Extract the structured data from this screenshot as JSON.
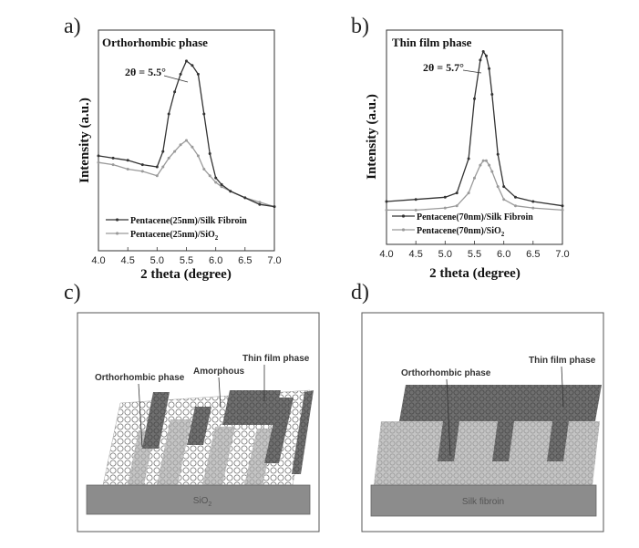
{
  "panels": {
    "a": "a)",
    "b": "b)",
    "c": "c)",
    "d": "d)"
  },
  "chart_data": [
    {
      "type": "line",
      "panel": "a",
      "title": "Orthorhombic phase",
      "annotation": "2θ = 5.5°",
      "xlabel": "2 theta (degree)",
      "ylabel": "Intensity (a.u.)",
      "xlim": [
        4.0,
        7.0
      ],
      "xticks": [
        "4.0",
        "4.5",
        "5.0",
        "5.5",
        "6.0",
        "6.5",
        "7.0"
      ],
      "ylim": [
        0,
        100
      ],
      "legend_position": "bottom-right",
      "x": [
        4.0,
        4.25,
        4.5,
        4.75,
        5.0,
        5.1,
        5.2,
        5.3,
        5.4,
        5.5,
        5.6,
        5.7,
        5.8,
        5.9,
        6.0,
        6.1,
        6.25,
        6.5,
        6.75,
        7.0
      ],
      "series": [
        {
          "name": "Pentacene(25nm)/Silk Fibroin",
          "color": "#333333",
          "values": [
            43,
            42,
            41,
            39,
            38,
            45,
            62,
            72,
            80,
            86,
            84,
            80,
            62,
            44,
            33,
            30,
            27,
            24,
            21,
            20
          ]
        },
        {
          "name": "Pentacene(25nm)/SiO2",
          "color": "#9a9a9a",
          "values": [
            40,
            39,
            37,
            36,
            34,
            38,
            42,
            45,
            48,
            50,
            47,
            43,
            37,
            34,
            31,
            29,
            27,
            24,
            22,
            20
          ]
        }
      ],
      "legend": [
        {
          "name": "Pentacene(25nm)/Silk Fibroin",
          "sub": ""
        },
        {
          "name": "Pentacene(25nm)/SiO",
          "sub": "2"
        }
      ]
    },
    {
      "type": "line",
      "panel": "b",
      "title": "Thin film phase",
      "annotation": "2θ = 5.7°",
      "xlabel": "2 theta (degree)",
      "ylabel": "Intensity (a.u.)",
      "xlim": [
        4.0,
        7.0
      ],
      "xticks": [
        "4.0",
        "4.5",
        "5.0",
        "5.5",
        "6.0",
        "6.5",
        "7.0"
      ],
      "ylim": [
        0,
        100
      ],
      "legend_position": "bottom-right",
      "x": [
        4.0,
        4.5,
        5.0,
        5.2,
        5.4,
        5.5,
        5.6,
        5.65,
        5.7,
        5.75,
        5.8,
        5.9,
        6.0,
        6.2,
        6.5,
        7.0
      ],
      "series": [
        {
          "name": "Pentacene(70nm)/Silk Fibroin",
          "color": "#333333",
          "values": [
            20,
            21,
            22,
            24,
            40,
            68,
            86,
            90,
            88,
            82,
            70,
            42,
            27,
            22,
            20,
            18
          ]
        },
        {
          "name": "Pentacene(70nm)/SiO2",
          "color": "#9a9a9a",
          "values": [
            16,
            16,
            17,
            18,
            24,
            31,
            37,
            39,
            39,
            37,
            34,
            27,
            21,
            18,
            17,
            16
          ]
        }
      ],
      "legend": [
        {
          "name": "Pentacene(70nm)/Silk Fibroin",
          "sub": ""
        },
        {
          "name": "Pentacene(70nm)/SiO",
          "sub": "2"
        }
      ]
    }
  ],
  "schematic_c": {
    "labels": {
      "ortho": "Orthorhombic phase",
      "amorphous": "Amorphous",
      "thin": "Thin film phase"
    },
    "substrate": {
      "text": "SiO",
      "sub": "2"
    },
    "colors": {
      "dark": "#707070",
      "light": "#bdbdbd",
      "substrate": "#8c8c8c"
    }
  },
  "schematic_d": {
    "labels": {
      "ortho": "Orthorhombic phase",
      "thin": "Thin film phase"
    },
    "substrate": "Silk fibroin",
    "colors": {
      "dark": "#707070",
      "light": "#bdbdbd",
      "substrate": "#8c8c8c"
    }
  }
}
